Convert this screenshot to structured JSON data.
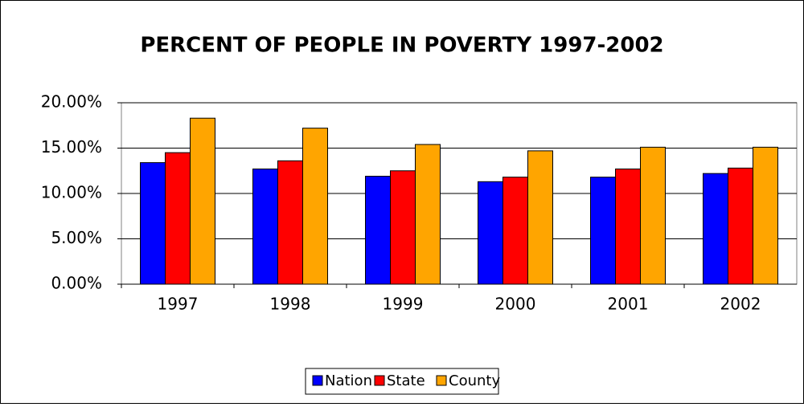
{
  "chart_data": {
    "type": "bar",
    "title": "PERCENT OF PEOPLE IN POVERTY 1997-2002",
    "categories": [
      "1997",
      "1998",
      "1999",
      "2000",
      "2001",
      "2002"
    ],
    "series": [
      {
        "name": "Nation",
        "color": "#0000ff",
        "values": [
          13.4,
          12.7,
          11.9,
          11.3,
          11.8,
          12.2
        ]
      },
      {
        "name": "State",
        "color": "#ff0000",
        "values": [
          14.5,
          13.6,
          12.5,
          11.8,
          12.7,
          12.8
        ]
      },
      {
        "name": "County",
        "color": "#ffa500",
        "values": [
          18.3,
          17.2,
          15.4,
          14.7,
          15.1,
          15.1
        ]
      }
    ],
    "ylim": [
      0,
      20
    ],
    "yticks": [
      {
        "value": 0,
        "label": "0.00%"
      },
      {
        "value": 5,
        "label": "5.00%"
      },
      {
        "value": 10,
        "label": "10.00%"
      },
      {
        "value": 15,
        "label": "15.00%"
      },
      {
        "value": 20,
        "label": "20.00%"
      }
    ],
    "grid": true
  }
}
